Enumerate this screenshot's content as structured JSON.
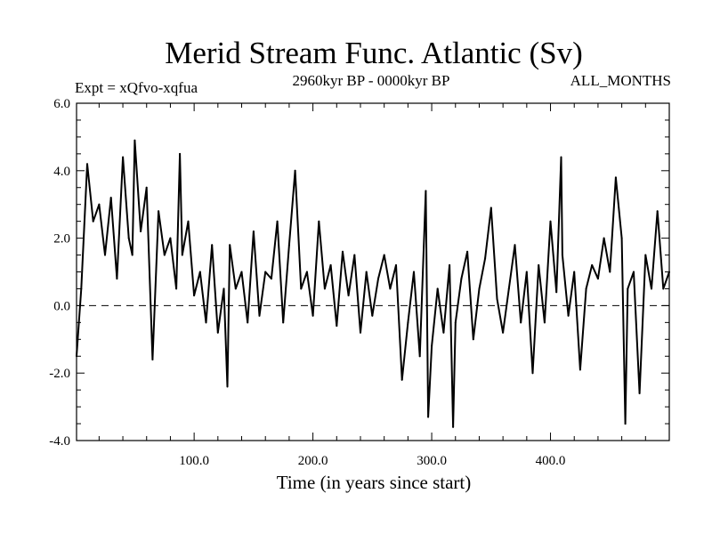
{
  "chart_data": {
    "type": "line",
    "title": "Merid Stream Func. Atlantic (Sv)",
    "subtitle_left": "Expt = xQfvo-xqfua",
    "subtitle_center": "2960kyr BP - 0000kyr BP",
    "subtitle_right": "ALL_MONTHS",
    "xlabel": "Time (in years since start)",
    "ylabel": "",
    "xlim": [
      1,
      500
    ],
    "ylim": [
      -4.0,
      6.0
    ],
    "xticks": [
      100,
      200,
      300,
      400
    ],
    "xtick_labels": [
      "100.0",
      "200.0",
      "300.0",
      "400.0"
    ],
    "yticks": [
      -4,
      -2,
      0,
      2,
      4,
      6
    ],
    "ytick_labels": [
      "-4.0",
      "-2.0",
      "0.0",
      "2.0",
      "4.0",
      "6.0"
    ],
    "reference_line": {
      "y": 0.0,
      "style": "dashed"
    },
    "grid": false,
    "series": [
      {
        "name": "Merid Stream Func. Atlantic",
        "color": "#000000",
        "x": [
          1,
          5,
          10,
          15,
          20,
          25,
          30,
          35,
          40,
          45,
          48,
          50,
          55,
          60,
          65,
          70,
          75,
          80,
          85,
          88,
          90,
          95,
          100,
          105,
          110,
          115,
          120,
          125,
          128,
          130,
          135,
          140,
          145,
          150,
          155,
          160,
          165,
          170,
          175,
          180,
          185,
          190,
          195,
          200,
          205,
          210,
          215,
          220,
          225,
          230,
          235,
          240,
          245,
          250,
          255,
          260,
          265,
          270,
          275,
          280,
          285,
          290,
          295,
          297,
          300,
          305,
          310,
          315,
          318,
          320,
          325,
          330,
          335,
          340,
          345,
          350,
          355,
          360,
          365,
          370,
          375,
          380,
          385,
          390,
          395,
          400,
          405,
          409,
          410,
          415,
          420,
          425,
          430,
          435,
          440,
          445,
          450,
          455,
          460,
          463,
          465,
          470,
          475,
          480,
          485,
          490,
          495,
          500
        ],
        "values": [
          -1.5,
          0.5,
          4.2,
          2.5,
          3.0,
          1.5,
          3.2,
          0.8,
          4.4,
          2.0,
          1.5,
          4.9,
          2.2,
          3.5,
          -1.6,
          2.8,
          1.5,
          2.0,
          0.5,
          4.5,
          1.5,
          2.5,
          0.3,
          1.0,
          -0.5,
          1.8,
          -0.8,
          0.5,
          -2.4,
          1.8,
          0.5,
          1.0,
          -0.5,
          2.2,
          -0.3,
          1.0,
          0.8,
          2.5,
          -0.5,
          1.8,
          4.0,
          0.5,
          1.0,
          -0.3,
          2.5,
          0.5,
          1.2,
          -0.6,
          1.6,
          0.3,
          1.5,
          -0.8,
          1.0,
          -0.3,
          0.8,
          1.5,
          0.5,
          1.2,
          -2.2,
          -0.5,
          1.0,
          -1.5,
          3.4,
          -3.3,
          -1.2,
          0.5,
          -0.8,
          1.2,
          -3.6,
          -0.5,
          0.8,
          1.6,
          -1.0,
          0.5,
          1.4,
          2.9,
          0.2,
          -0.8,
          0.5,
          1.8,
          -0.5,
          1.0,
          -2.0,
          1.2,
          -0.5,
          2.5,
          0.4,
          4.4,
          1.5,
          -0.3,
          1.0,
          -1.9,
          0.5,
          1.2,
          0.8,
          2.0,
          1.0,
          3.8,
          2.0,
          -3.5,
          0.5,
          1.0,
          -2.6,
          1.5,
          0.5,
          2.8,
          0.5,
          1.0
        ]
      }
    ]
  }
}
